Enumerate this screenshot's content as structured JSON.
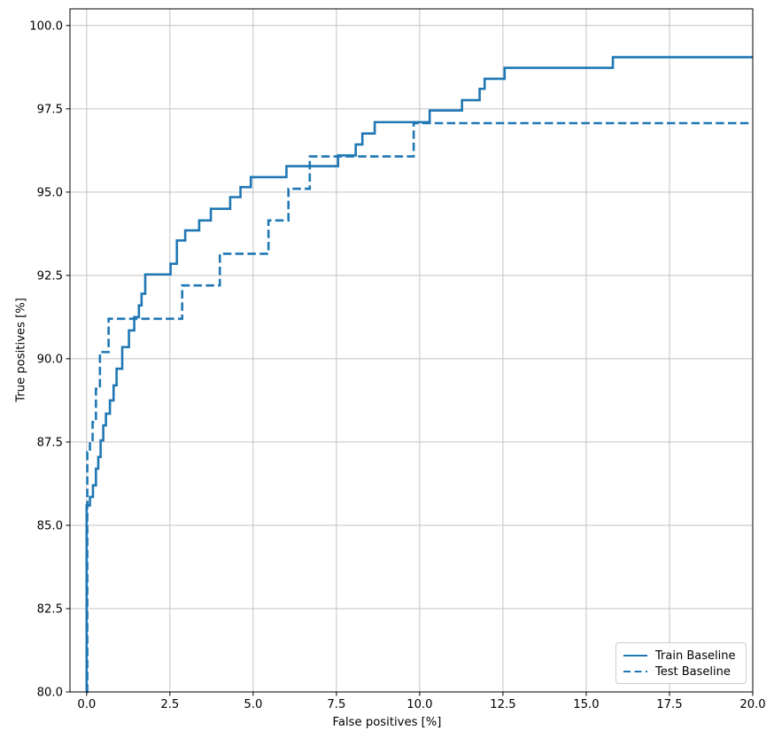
{
  "chart_data": {
    "type": "line",
    "subtype": "step",
    "title": "",
    "xlabel": "False positives [%]",
    "ylabel": "True positives [%]",
    "xlim": [
      -0.5,
      20.0
    ],
    "ylim": [
      80.0,
      100.5
    ],
    "xticks": [
      0.0,
      2.5,
      5.0,
      7.5,
      10.0,
      12.5,
      15.0,
      17.5,
      20.0
    ],
    "yticks": [
      80.0,
      82.5,
      85.0,
      87.5,
      90.0,
      92.5,
      95.0,
      97.5,
      100.0
    ],
    "grid": true,
    "grid_color": "#c3c3c3",
    "spine_color": "#000000",
    "accent_color": "#1f77b4",
    "legend_position": "lower right",
    "series": [
      {
        "name": "Train Baseline",
        "style": "solid",
        "color": "#1f77b4",
        "start": [
          0.0,
          80.0
        ],
        "steps": [
          [
            0.0,
            85.6
          ],
          [
            0.1,
            85.85
          ],
          [
            0.19,
            86.2
          ],
          [
            0.28,
            86.7
          ],
          [
            0.35,
            87.05
          ],
          [
            0.42,
            87.55
          ],
          [
            0.5,
            88.0
          ],
          [
            0.58,
            88.35
          ],
          [
            0.7,
            88.75
          ],
          [
            0.81,
            89.2
          ],
          [
            0.9,
            89.7
          ],
          [
            1.07,
            90.35
          ],
          [
            1.27,
            90.85
          ],
          [
            1.43,
            91.25
          ],
          [
            1.57,
            91.6
          ],
          [
            1.65,
            91.95
          ],
          [
            1.76,
            92.53
          ],
          [
            2.52,
            92.85
          ],
          [
            2.71,
            93.55
          ],
          [
            2.96,
            93.85
          ],
          [
            3.38,
            94.15
          ],
          [
            3.73,
            94.5
          ],
          [
            4.31,
            94.85
          ],
          [
            4.62,
            95.15
          ],
          [
            4.93,
            95.45
          ],
          [
            6.0,
            95.78
          ],
          [
            7.55,
            96.1
          ],
          [
            8.08,
            96.43
          ],
          [
            8.28,
            96.76
          ],
          [
            8.65,
            97.1
          ],
          [
            10.3,
            97.45
          ],
          [
            11.27,
            97.76
          ],
          [
            11.8,
            98.1
          ],
          [
            11.95,
            98.4
          ],
          [
            12.55,
            98.73
          ],
          [
            15.8,
            99.05
          ]
        ],
        "end_x": 20.0
      },
      {
        "name": "Test Baseline",
        "style": "dashed",
        "color": "#1f77b4",
        "start": [
          0.0,
          80.0
        ],
        "steps": [
          [
            0.02,
            87.2
          ],
          [
            0.1,
            87.5
          ],
          [
            0.18,
            88.1
          ],
          [
            0.28,
            89.1
          ],
          [
            0.4,
            90.2
          ],
          [
            0.66,
            91.2
          ],
          [
            2.87,
            92.2
          ],
          [
            4.0,
            93.15
          ],
          [
            5.46,
            94.15
          ],
          [
            6.06,
            95.1
          ],
          [
            6.7,
            96.07
          ],
          [
            9.82,
            97.07
          ]
        ],
        "end_x": 20.0
      }
    ]
  }
}
